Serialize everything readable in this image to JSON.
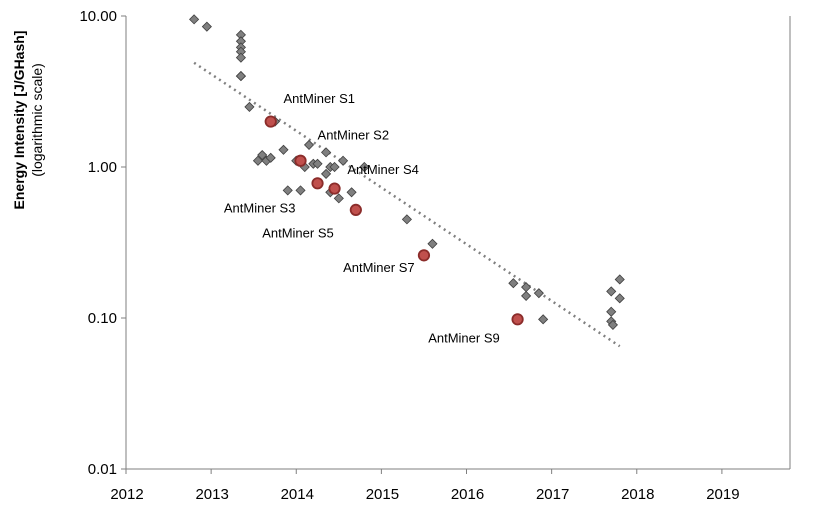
{
  "chart_data": {
    "type": "scatter",
    "title": "",
    "xlabel": "",
    "ylabel": "Energy Intensity [J/GHash]",
    "ylabel_sub": "(logarithmic scale)",
    "xlim": [
      2012,
      2019.8
    ],
    "ylim": [
      0.01,
      10
    ],
    "y_scale": "log",
    "x_ticks": [
      2012,
      2013,
      2014,
      2015,
      2016,
      2017,
      2018,
      2019
    ],
    "y_ticks": [
      0.01,
      0.1,
      1,
      10
    ],
    "y_tick_labels": [
      "0.01",
      "0.10",
      "1.00",
      "10.00"
    ],
    "grid": false,
    "legend": "none",
    "colors": {
      "marker": "#7f7f7f",
      "marker_edge": "#404040",
      "highlight": "#c0504d",
      "highlight_edge": "#8b2c2a",
      "trend": "#808080"
    },
    "series": [
      {
        "marker": "diamond",
        "x": [
          2012.8,
          2012.95,
          2013.35,
          2013.35,
          2013.35,
          2013.35,
          2013.35,
          2013.35,
          2013.35,
          2013.45,
          2013.55,
          2013.6,
          2013.65,
          2013.7,
          2013.75,
          2013.85,
          2013.9,
          2014.0,
          2014.05,
          2014.1,
          2014.15,
          2014.2,
          2014.25,
          2014.35,
          2014.35,
          2014.4,
          2014.4,
          2014.45,
          2014.5,
          2014.55,
          2014.65,
          2014.8,
          2015.3,
          2015.6,
          2016.55,
          2016.7,
          2016.7,
          2016.85,
          2016.9,
          2017.7,
          2017.7,
          2017.7,
          2017.72,
          2017.8,
          2017.8
        ],
        "y": [
          9.5,
          8.5,
          7.5,
          6.8,
          6.2,
          5.8,
          5.3,
          4.0,
          4.0,
          2.5,
          1.1,
          1.2,
          1.1,
          1.15,
          2.0,
          1.3,
          0.7,
          1.1,
          0.7,
          1.0,
          1.4,
          1.05,
          1.05,
          0.9,
          1.25,
          0.68,
          1.0,
          1.0,
          0.62,
          1.1,
          0.68,
          1.0,
          0.45,
          0.31,
          0.17,
          0.16,
          0.14,
          0.146,
          0.098,
          0.15,
          0.11,
          0.095,
          0.09,
          0.18,
          0.135
        ]
      },
      {
        "marker": "circle",
        "x": [
          2013.7,
          2014.05,
          2014.25,
          2014.45,
          2014.7,
          2015.5,
          2016.6
        ],
        "y": [
          2.0,
          1.1,
          0.78,
          0.72,
          0.52,
          0.26,
          0.098
        ]
      }
    ],
    "trendline": {
      "style": "dotted",
      "x": [
        2012.8,
        2017.8
      ],
      "y": [
        4.9,
        0.065
      ]
    },
    "annotations": [
      {
        "text": "AntMiner S1",
        "x": 2013.85,
        "y": 2.65
      },
      {
        "text": "AntMiner S2",
        "x": 2014.25,
        "y": 1.52
      },
      {
        "text": "AntMiner S3",
        "x": 2013.15,
        "y": 0.5
      },
      {
        "text": "AntMiner S4",
        "x": 2014.6,
        "y": 0.9
      },
      {
        "text": "AntMiner S5",
        "x": 2013.6,
        "y": 0.34
      },
      {
        "text": "AntMiner S7",
        "x": 2014.55,
        "y": 0.202
      },
      {
        "text": "AntMiner S9",
        "x": 2015.55,
        "y": 0.069
      }
    ]
  }
}
